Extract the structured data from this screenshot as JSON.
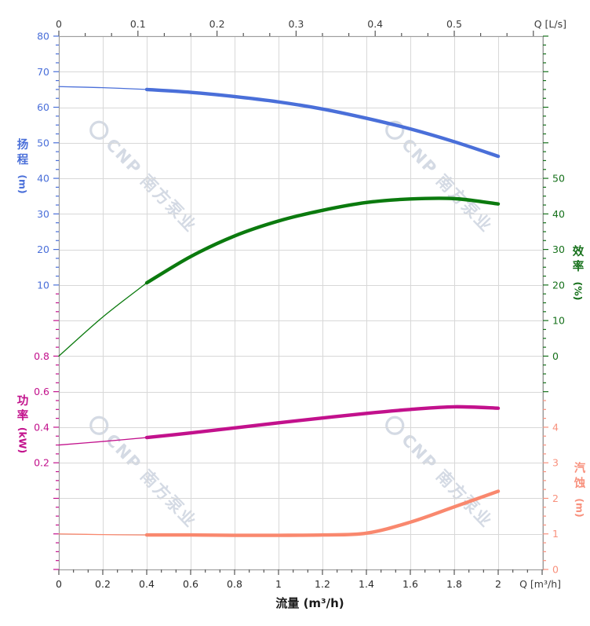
{
  "watermark": {
    "text": "CNP 南方泵业"
  },
  "axes": {
    "top": {
      "label": "Q [L/s]",
      "ticks": [
        "0",
        "0.1",
        "0.2",
        "0.3",
        "0.4",
        "0.5"
      ]
    },
    "bottom": {
      "label": "Q [m³/h]",
      "title": "流量 (m³/h)",
      "ticks": [
        "0",
        "0.2",
        "0.4",
        "0.6",
        "0.8",
        "1",
        "1.2",
        "1.4",
        "1.6",
        "1.8",
        "2"
      ]
    },
    "head": {
      "title": "扬程",
      "unit": "(m)",
      "color": "#4a6fd9",
      "ticks": [
        "80",
        "70",
        "60",
        "50",
        "40",
        "30",
        "20",
        "10"
      ]
    },
    "power": {
      "title": "功率",
      "unit": "(kW)",
      "color": "#c2118c",
      "ticks": [
        "0.8",
        "0.6",
        "0.4",
        "0.2"
      ]
    },
    "efficiency": {
      "title": "效率",
      "unit": "(%)",
      "color": "#15701a",
      "ticks": [
        "50",
        "40",
        "30",
        "20",
        "10",
        "0"
      ]
    },
    "npsh": {
      "title": "汽蚀",
      "unit": "(m)",
      "color": "#f8917d",
      "ticks": [
        "4",
        "3",
        "2",
        "1",
        "0"
      ]
    }
  },
  "chart_data": {
    "type": "line",
    "title": "",
    "xlabel_bottom": "流量 (m³/h)",
    "xlabel_top": "Q [L/s]",
    "x_unit_bottom": "Q [m³/h]",
    "x_unit_top": "Q [L/s]",
    "x_range_m3h": [
      0,
      2.2
    ],
    "x_ticks_m3h": [
      0,
      0.2,
      0.4,
      0.6,
      0.8,
      1.0,
      1.2,
      1.4,
      1.6,
      1.8,
      2.0
    ],
    "x_ticks_Ls": [
      0,
      0.1,
      0.2,
      0.3,
      0.4,
      0.5
    ],
    "grid": true,
    "thin_until_q": 0.4,
    "q": [
      0,
      0.2,
      0.4,
      0.6,
      0.8,
      1.0,
      1.2,
      1.4,
      1.6,
      1.8,
      2.0
    ],
    "series": [
      {
        "name": "扬程",
        "key": "head",
        "axis": "head",
        "unit": "m",
        "color": "#4a6fd9",
        "axis_range": [
          10,
          80
        ],
        "values": [
          65.8,
          65.5,
          65.0,
          64.2,
          63.0,
          61.5,
          59.5,
          56.9,
          53.9,
          50.3,
          46.2
        ]
      },
      {
        "name": "效率",
        "key": "efficiency",
        "axis": "efficiency",
        "unit": "%",
        "color": "#0b7a0e",
        "axis_range": [
          0,
          50
        ],
        "values": [
          0,
          11.0,
          20.6,
          28.0,
          33.8,
          38.0,
          41.0,
          43.2,
          44.2,
          44.3,
          42.8
        ]
      },
      {
        "name": "功率",
        "key": "power",
        "axis": "power",
        "unit": "kW",
        "color": "#c2118c",
        "axis_range": [
          0.2,
          0.8
        ],
        "values": [
          0.3,
          0.32,
          0.342,
          0.368,
          0.396,
          0.425,
          0.452,
          0.478,
          0.5,
          0.515,
          0.507
        ]
      },
      {
        "name": "汽蚀",
        "key": "npsh",
        "axis": "npsh",
        "unit": "m",
        "color": "#f9886e",
        "axis_range": [
          0,
          4
        ],
        "values": [
          1.0,
          0.98,
          0.97,
          0.97,
          0.96,
          0.96,
          0.97,
          1.02,
          1.33,
          1.76,
          2.2
        ]
      }
    ]
  }
}
